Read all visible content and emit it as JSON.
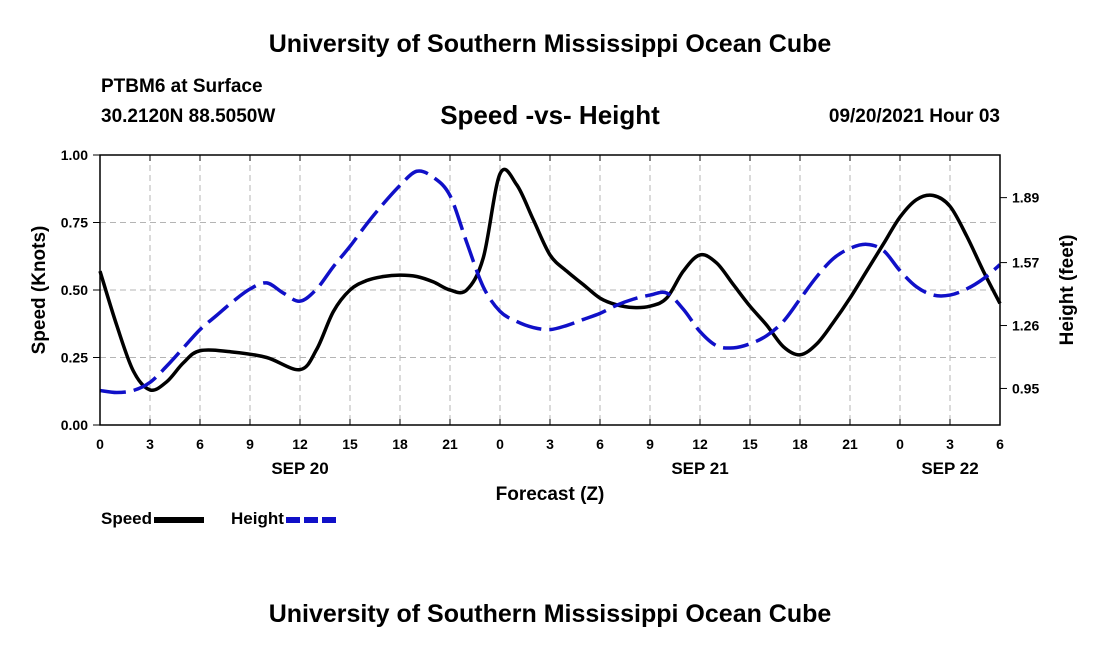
{
  "header": {
    "title": "University of Southern Mississippi Ocean Cube",
    "station": "PTBM6 at Surface",
    "coords": "30.2120N  88.5050W",
    "chart_title": "Speed -vs- Height",
    "date": "09/20/2021 Hour 03"
  },
  "footer": {
    "title": "University of Southern Mississippi Ocean Cube"
  },
  "legend": {
    "speed": "Speed",
    "height": "Height"
  },
  "colors": {
    "speed": "#000000",
    "height": "#1010c8",
    "grid": "#b4b4b4"
  },
  "chart_data": {
    "type": "line",
    "title": "Speed -vs- Height",
    "xlabel": "Forecast (Z)",
    "ylabel": "Speed (Knots)",
    "y2label": "Height (feet)",
    "xlim": [
      0,
      54
    ],
    "ylim": [
      0,
      1.0
    ],
    "y2lim": [
      0.77,
      2.1
    ],
    "x_ticks": [
      0,
      3,
      6,
      9,
      12,
      15,
      18,
      21,
      24,
      27,
      30,
      33,
      36,
      39,
      42,
      45,
      48,
      51,
      54
    ],
    "x_tick_labels": [
      "0",
      "3",
      "6",
      "9",
      "12",
      "15",
      "18",
      "21",
      "0",
      "3",
      "6",
      "9",
      "12",
      "15",
      "18",
      "21",
      "0",
      "3",
      "6"
    ],
    "date_labels": [
      {
        "x": 12,
        "label": "SEP 20"
      },
      {
        "x": 36,
        "label": "SEP 21"
      },
      {
        "x": 51,
        "label": "SEP 22"
      }
    ],
    "y_ticks": [
      0.0,
      0.25,
      0.5,
      0.75,
      1.0
    ],
    "y_tick_labels": [
      "0.00",
      "0.25",
      "0.50",
      "0.75",
      "1.00"
    ],
    "y2_ticks": [
      0.95,
      1.26,
      1.57,
      1.89
    ],
    "y2_tick_labels": [
      "0.95",
      "1.26",
      "1.57",
      "1.89"
    ],
    "series": [
      {
        "name": "Speed",
        "axis": "left",
        "style": "solid",
        "x": [
          0,
          1,
          2,
          3,
          4,
          5,
          6,
          8,
          10,
          12,
          13,
          14,
          15,
          16,
          17,
          18,
          19,
          20,
          21,
          22,
          23,
          24,
          25,
          26,
          27,
          28,
          29,
          30,
          31,
          32,
          33,
          34,
          35,
          36,
          37,
          38,
          39,
          40,
          41,
          42,
          43,
          44,
          45,
          46,
          47,
          48,
          49,
          50,
          51,
          52,
          53,
          54
        ],
        "values": [
          0.57,
          0.37,
          0.2,
          0.13,
          0.16,
          0.23,
          0.275,
          0.27,
          0.25,
          0.205,
          0.28,
          0.42,
          0.5,
          0.535,
          0.55,
          0.555,
          0.55,
          0.53,
          0.5,
          0.5,
          0.62,
          0.93,
          0.89,
          0.76,
          0.63,
          0.57,
          0.52,
          0.47,
          0.445,
          0.435,
          0.44,
          0.47,
          0.57,
          0.63,
          0.6,
          0.52,
          0.44,
          0.37,
          0.29,
          0.26,
          0.3,
          0.38,
          0.47,
          0.57,
          0.67,
          0.77,
          0.835,
          0.85,
          0.81,
          0.7,
          0.57,
          0.45
        ]
      },
      {
        "name": "Height",
        "axis": "right",
        "style": "dashed",
        "x": [
          0,
          1,
          2,
          3,
          4,
          5,
          6,
          7,
          8,
          9,
          10,
          11,
          12,
          13,
          14,
          15,
          16,
          17,
          18,
          19,
          20,
          21,
          22,
          23,
          24,
          25,
          26,
          27,
          28,
          29,
          30,
          31,
          32,
          33,
          34,
          35,
          36,
          37,
          38,
          39,
          40,
          41,
          42,
          43,
          44,
          45,
          46,
          47,
          48,
          49,
          50,
          51,
          52,
          53,
          54
        ],
        "values": [
          0.94,
          0.93,
          0.94,
          0.98,
          1.06,
          1.15,
          1.24,
          1.31,
          1.38,
          1.44,
          1.47,
          1.42,
          1.38,
          1.44,
          1.55,
          1.65,
          1.76,
          1.86,
          1.95,
          2.02,
          1.99,
          1.9,
          1.67,
          1.45,
          1.33,
          1.28,
          1.25,
          1.24,
          1.26,
          1.29,
          1.32,
          1.36,
          1.39,
          1.41,
          1.42,
          1.34,
          1.23,
          1.16,
          1.15,
          1.17,
          1.21,
          1.28,
          1.39,
          1.5,
          1.59,
          1.64,
          1.66,
          1.63,
          1.53,
          1.45,
          1.41,
          1.41,
          1.44,
          1.49,
          1.56
        ]
      }
    ]
  }
}
